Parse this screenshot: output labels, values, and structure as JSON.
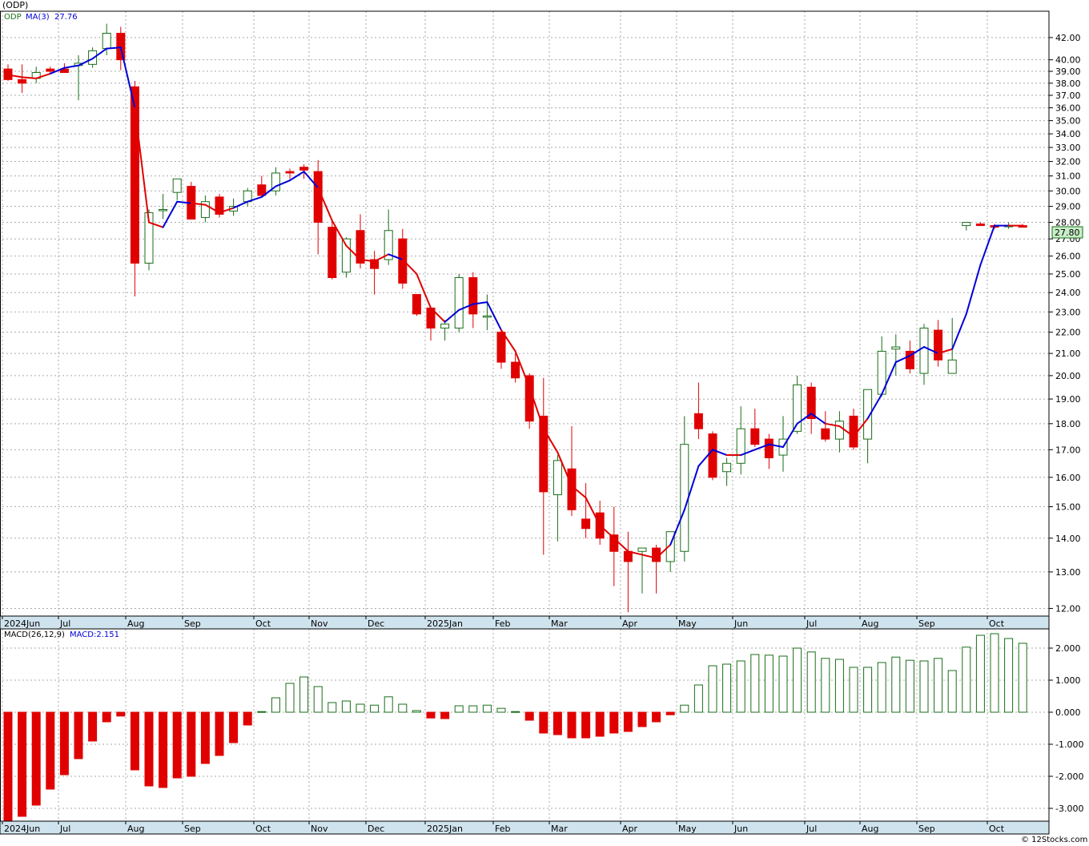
{
  "header": {
    "symbol_title": "(ODP)"
  },
  "legend": {
    "ticker": "ODP",
    "ma_label": "MA(3)",
    "ma_value": "27.76",
    "macd_label": "MACD(26,12,9)",
    "macd_value_label": "MACD:2.151"
  },
  "price_badge": "27.80",
  "footer": {
    "watermark": "© 12Stocks.com"
  },
  "colors": {
    "up": "#1a6e1a",
    "down": "#e00000",
    "ma_up": "#0000d8",
    "ma_down": "#e00000",
    "axis_band": "#cfe3ee",
    "grid": "#aaaaaa",
    "price_badge_bg": "#c8f0c8"
  },
  "chart_data": [
    {
      "type": "candlestick",
      "title": "(ODP)",
      "scale": "log",
      "ylim": [
        11.8,
        44.5
      ],
      "y_ticks": [
        "42.00",
        "40.00",
        "39.00",
        "38.00",
        "37.00",
        "36.00",
        "35.00",
        "34.00",
        "33.00",
        "32.00",
        "31.00",
        "30.00",
        "29.00",
        "28.00",
        "27.00",
        "26.00",
        "25.00",
        "24.00",
        "23.00",
        "22.00",
        "21.00",
        "20.00",
        "19.00",
        "18.00",
        "17.00",
        "16.00",
        "15.00",
        "14.00",
        "13.00",
        "12.00"
      ],
      "x_labels": [
        "2024Jun",
        "Jul",
        "Aug",
        "Sep",
        "Oct",
        "Nov",
        "Dec",
        "2025Jan",
        "Feb",
        "Mar",
        "Apr",
        "May",
        "Jun",
        "Jul",
        "Aug",
        "Sep",
        "Oct"
      ],
      "grid": true,
      "candles": [
        [
          39.2,
          39.6,
          38.2,
          38.3
        ],
        [
          38.3,
          39.6,
          37.2,
          38.0
        ],
        [
          38.4,
          39.4,
          38.0,
          38.9
        ],
        [
          39.2,
          39.4,
          38.8,
          39.0
        ],
        [
          39.2,
          39.7,
          38.9,
          38.9
        ],
        [
          39.5,
          40.4,
          36.6,
          39.7
        ],
        [
          39.6,
          41.1,
          39.3,
          40.8
        ],
        [
          41.0,
          43.3,
          40.4,
          42.4
        ],
        [
          42.4,
          43.0,
          39.1,
          40.0
        ],
        [
          37.7,
          38.2,
          23.8,
          25.6
        ],
        [
          25.6,
          28.8,
          25.2,
          28.6
        ],
        [
          28.8,
          29.8,
          28.2,
          28.8
        ],
        [
          29.9,
          30.8,
          29.4,
          30.8
        ],
        [
          30.3,
          30.6,
          28.2,
          28.2
        ],
        [
          28.3,
          29.7,
          28.0,
          29.3
        ],
        [
          29.6,
          29.8,
          28.3,
          28.5
        ],
        [
          28.7,
          29.5,
          28.4,
          29.0
        ],
        [
          29.3,
          30.2,
          29.0,
          30.0
        ],
        [
          30.4,
          31.0,
          29.8,
          29.7
        ],
        [
          30.0,
          31.6,
          29.7,
          31.2
        ],
        [
          31.3,
          31.5,
          30.8,
          31.2
        ],
        [
          31.6,
          31.8,
          30.8,
          31.4
        ],
        [
          31.3,
          32.1,
          26.1,
          28.0
        ],
        [
          27.7,
          28.1,
          24.7,
          24.8
        ],
        [
          25.1,
          27.1,
          24.8,
          27.0
        ],
        [
          27.5,
          28.5,
          25.3,
          25.6
        ],
        [
          25.8,
          26.3,
          23.9,
          25.3
        ],
        [
          25.8,
          28.8,
          25.5,
          27.5
        ],
        [
          27.0,
          27.6,
          24.2,
          24.5
        ],
        [
          23.9,
          23.9,
          22.8,
          22.9
        ],
        [
          23.2,
          23.2,
          21.6,
          22.2
        ],
        [
          22.2,
          22.6,
          21.6,
          22.4
        ],
        [
          22.2,
          25.0,
          22.0,
          24.8
        ],
        [
          24.8,
          25.1,
          22.2,
          22.9
        ],
        [
          22.8,
          23.9,
          22.1,
          22.8
        ],
        [
          22.0,
          22.1,
          20.3,
          20.6
        ],
        [
          20.6,
          21.0,
          19.7,
          19.9
        ],
        [
          20.0,
          20.1,
          17.8,
          18.1
        ],
        [
          18.3,
          19.9,
          13.5,
          15.5
        ],
        [
          15.4,
          16.8,
          13.9,
          16.6
        ],
        [
          16.3,
          17.9,
          14.7,
          14.9
        ],
        [
          14.6,
          15.8,
          14.0,
          14.3
        ],
        [
          14.8,
          15.2,
          13.8,
          14.0
        ],
        [
          14.1,
          15.0,
          12.6,
          13.6
        ],
        [
          13.6,
          14.2,
          11.9,
          13.3
        ],
        [
          13.6,
          13.7,
          12.4,
          13.7
        ],
        [
          13.7,
          13.8,
          12.4,
          13.3
        ],
        [
          13.3,
          14.2,
          13.0,
          14.2
        ],
        [
          13.6,
          18.3,
          13.3,
          17.2
        ],
        [
          18.4,
          19.7,
          17.4,
          17.8
        ],
        [
          17.6,
          17.7,
          15.9,
          16.0
        ],
        [
          16.2,
          16.7,
          15.7,
          16.5
        ],
        [
          16.5,
          18.7,
          16.1,
          17.8
        ],
        [
          17.8,
          18.6,
          17.1,
          17.2
        ],
        [
          17.4,
          17.6,
          16.3,
          16.7
        ],
        [
          16.8,
          18.3,
          16.2,
          17.4
        ],
        [
          17.7,
          20.0,
          17.6,
          19.6
        ],
        [
          19.5,
          19.7,
          17.6,
          18.2
        ],
        [
          17.8,
          18.5,
          17.3,
          17.4
        ],
        [
          17.4,
          18.5,
          16.9,
          18.1
        ],
        [
          18.3,
          18.6,
          17.0,
          17.1
        ],
        [
          17.4,
          19.4,
          16.5,
          19.4
        ],
        [
          19.2,
          21.8,
          19.1,
          21.1
        ],
        [
          21.2,
          21.9,
          20.0,
          21.3
        ],
        [
          21.1,
          21.6,
          20.1,
          20.3
        ],
        [
          20.1,
          22.4,
          19.6,
          22.2
        ],
        [
          22.1,
          22.6,
          20.4,
          20.7
        ],
        [
          20.1,
          22.7,
          20.1,
          20.7
        ],
        [
          27.8,
          28.0,
          27.5,
          28.0
        ],
        [
          27.9,
          28.0,
          27.8,
          27.8
        ],
        [
          27.8,
          27.9,
          27.6,
          27.7
        ],
        [
          27.8,
          28.0,
          27.6,
          27.8
        ],
        [
          27.8,
          27.9,
          27.7,
          27.7
        ]
      ],
      "ma3": [
        38.7,
        38.5,
        38.4,
        38.8,
        39.3,
        39.5,
        40.1,
        41.0,
        41.1,
        36.0,
        28.0,
        27.7,
        29.3,
        29.2,
        29.1,
        28.6,
        28.9,
        29.3,
        29.6,
        30.3,
        30.7,
        31.3,
        30.2,
        28.1,
        26.6,
        25.8,
        25.7,
        26.1,
        25.8,
        25.0,
        23.2,
        22.5,
        23.1,
        23.4,
        23.5,
        22.1,
        21.1,
        19.5,
        17.8,
        16.9,
        15.7,
        15.3,
        14.4,
        14.0,
        13.6,
        13.5,
        13.4,
        13.8,
        14.9,
        16.4,
        17.0,
        16.8,
        16.8,
        17.0,
        17.2,
        17.1,
        18.0,
        18.4,
        18.0,
        17.9,
        17.5,
        18.2,
        19.2,
        20.6,
        20.9,
        21.3,
        21.0,
        21.2,
        22.9,
        25.5,
        27.8,
        27.8,
        27.8
      ],
      "ma_color_segments": [
        "down",
        "down",
        "down",
        "up",
        "up",
        "up",
        "up",
        "up",
        "up",
        "down",
        "down",
        "up",
        "up",
        "down",
        "down",
        "down",
        "up",
        "up",
        "up",
        "up",
        "up",
        "up",
        "down",
        "down",
        "down",
        "down",
        "down",
        "up",
        "down",
        "down",
        "down",
        "up",
        "up",
        "up",
        "up",
        "down",
        "down",
        "down",
        "down",
        "down",
        "down",
        "down",
        "down",
        "down",
        "down",
        "down",
        "down",
        "up",
        "up",
        "up",
        "up",
        "down",
        "up",
        "up",
        "up",
        "up",
        "up",
        "up",
        "down",
        "down",
        "down",
        "up",
        "up",
        "up",
        "up",
        "up",
        "down",
        "up",
        "up",
        "up",
        "up",
        "down",
        "down"
      ]
    },
    {
      "type": "bar",
      "title": "MACD(26,12,9)",
      "ylim": [
        -3.4,
        2.6
      ],
      "y_ticks": [
        "2.000",
        "1.000",
        "0.000",
        "-1.000",
        "-2.000",
        "-3.000"
      ],
      "x_labels": [
        "2024Jun",
        "Jul",
        "Aug",
        "Sep",
        "Oct",
        "Nov",
        "Dec",
        "2025Jan",
        "Feb",
        "Mar",
        "Apr",
        "May",
        "Jun",
        "Jul",
        "Aug",
        "Sep",
        "Oct"
      ],
      "values": [
        -3.4,
        -3.25,
        -2.9,
        -2.4,
        -1.95,
        -1.45,
        -0.9,
        -0.3,
        -0.12,
        -1.8,
        -2.3,
        -2.35,
        -2.05,
        -2.0,
        -1.6,
        -1.35,
        -0.95,
        -0.4,
        0.02,
        0.45,
        0.9,
        1.1,
        0.8,
        0.3,
        0.35,
        0.25,
        0.22,
        0.48,
        0.25,
        0.05,
        -0.18,
        -0.2,
        0.2,
        0.2,
        0.22,
        0.12,
        0.02,
        -0.25,
        -0.65,
        -0.7,
        -0.8,
        -0.8,
        -0.75,
        -0.65,
        -0.6,
        -0.45,
        -0.3,
        -0.08,
        0.22,
        0.85,
        1.45,
        1.5,
        1.6,
        1.8,
        1.78,
        1.75,
        2.0,
        1.88,
        1.68,
        1.65,
        1.4,
        1.4,
        1.55,
        1.72,
        1.62,
        1.6,
        1.68,
        1.3,
        2.03,
        2.4,
        2.45,
        2.3,
        2.151
      ]
    }
  ]
}
